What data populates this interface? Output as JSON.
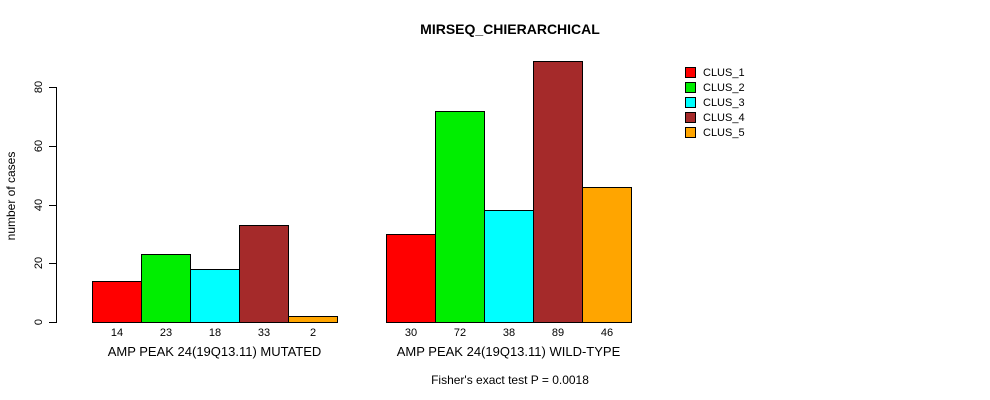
{
  "chart_data": {
    "type": "bar",
    "title": "MIRSEQ_CHIERARCHICAL",
    "ylabel": "number of cases",
    "xlabel": "",
    "ylim": [
      0,
      80
    ],
    "yticks": [
      0,
      20,
      40,
      60,
      80
    ],
    "grid": false,
    "legend_position": "right",
    "series": [
      {
        "name": "CLUS_1",
        "color": "#ff0000"
      },
      {
        "name": "CLUS_2",
        "color": "#00ee00"
      },
      {
        "name": "CLUS_3",
        "color": "#00ffff"
      },
      {
        "name": "CLUS_4",
        "color": "#a52a2a"
      },
      {
        "name": "CLUS_5",
        "color": "#ffa500"
      }
    ],
    "groups": [
      {
        "label": "AMP PEAK 24(19Q13.11) MUTATED",
        "values": [
          14,
          23,
          18,
          33,
          2
        ]
      },
      {
        "label": "AMP PEAK 24(19Q13.11) WILD-TYPE",
        "values": [
          30,
          72,
          38,
          89,
          46
        ]
      }
    ],
    "bar_value_labels": true,
    "annotation": "Fisher's exact test P = 0.0018"
  }
}
